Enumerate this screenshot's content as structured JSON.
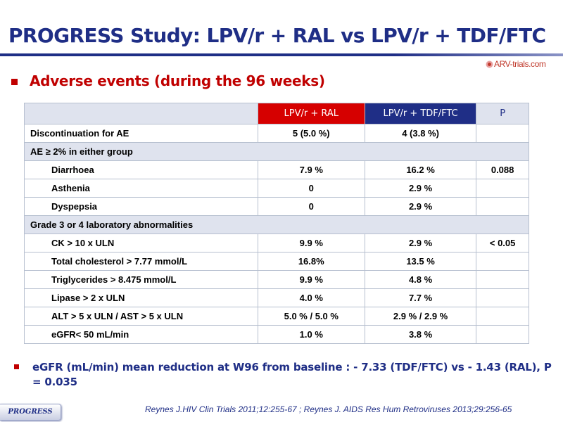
{
  "slide": {
    "title": "PROGRESS Study: LPV/r + RAL vs LPV/r + TDF/FTC",
    "logo_text": "ARV-trials.com",
    "subtitle": "Adverse events (during the 96 weeks)",
    "note": "eGFR (mL/min) mean reduction at W96 from baseline : - 7.33 (TDF/FTC) vs - 1.43 (RAL), P = 0.035",
    "footer_tag": "PROGRESS",
    "reference": "Reynes J.HIV Clin Trials 2011;12:255-67 ; Reynes J. AIDS Res Hum Retroviruses 2013;29:256-65"
  },
  "colors": {
    "title_blue": "#1f2e86",
    "accent_red": "#d60000",
    "section_grey": "#dfe3ee"
  },
  "table": {
    "headers": {
      "col1": "",
      "ral": "LPV/r + RAL",
      "tdf": "LPV/r + TDF/FTC",
      "p": "P"
    },
    "rows": [
      {
        "label": "Discontinuation for AE",
        "ral": "5 (5.0 %)",
        "tdf": "4 (3.8 %)",
        "p": ""
      },
      {
        "label": "AE ≥ 2% in either group"
      },
      {
        "label": "Diarrhoea",
        "ral": "7.9 %",
        "tdf": "16.2 %",
        "p": "0.088"
      },
      {
        "label": "Asthenia",
        "ral": "0",
        "tdf": "2.9 %",
        "p": ""
      },
      {
        "label": "Dyspepsia",
        "ral": "0",
        "tdf": "2.9 %",
        "p": ""
      },
      {
        "label": "Grade 3 or 4 laboratory abnormalities"
      },
      {
        "label": "CK > 10 x ULN",
        "ral": "9.9 %",
        "tdf": "2.9 %",
        "p": "< 0.05"
      },
      {
        "label": "Total cholesterol > 7.77 mmol/L",
        "ral": "16.8%",
        "tdf": "13.5 %",
        "p": ""
      },
      {
        "label": "Triglycerides > 8.475 mmol/L",
        "ral": "9.9 %",
        "tdf": "4.8 %",
        "p": ""
      },
      {
        "label": "Lipase > 2 x ULN",
        "ral": "4.0 %",
        "tdf": "7.7 %",
        "p": ""
      },
      {
        "label": "ALT > 5 x ULN / AST > 5 x ULN",
        "ral": "5.0 % / 5.0 %",
        "tdf": "2.9 % / 2.9 %",
        "p": ""
      },
      {
        "label": "eGFR< 50 mL/min",
        "ral": "1.0 %",
        "tdf": "3.8 %",
        "p": ""
      }
    ]
  }
}
